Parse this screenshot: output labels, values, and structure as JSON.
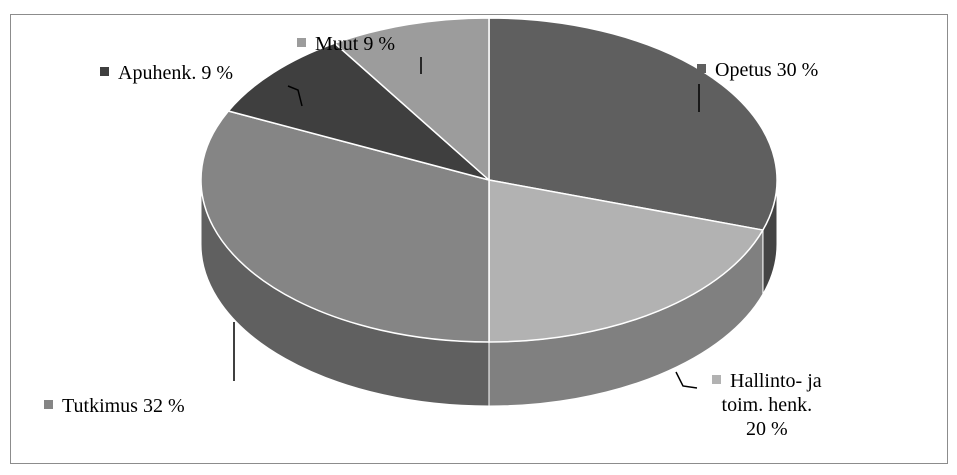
{
  "chart_data": {
    "type": "pie",
    "title": "",
    "style": "3d",
    "categories": [
      "Opetus",
      "Hallinto- ja toim. henk.",
      "Tutkimus",
      "Apuhenk.",
      "Muut"
    ],
    "values": [
      30,
      20,
      32,
      9,
      9
    ],
    "unit": "%",
    "labels": {
      "opetus": "Opetus 30 %",
      "hallinto_line1": "Hallinto- ja",
      "hallinto_line2": "toim. henk.",
      "hallinto_line3": "20 %",
      "tutkimus": "Tutkimus 32 %",
      "apuhenk": "Apuhenk. 9 %",
      "muut": "Muut 9 %"
    },
    "colors": {
      "opetus": "#5f5f5f",
      "hallinto": "#b2b2b2",
      "tutkimus": "#858585",
      "apuhenk": "#3f3f3f",
      "muut": "#9c9c9c"
    }
  }
}
